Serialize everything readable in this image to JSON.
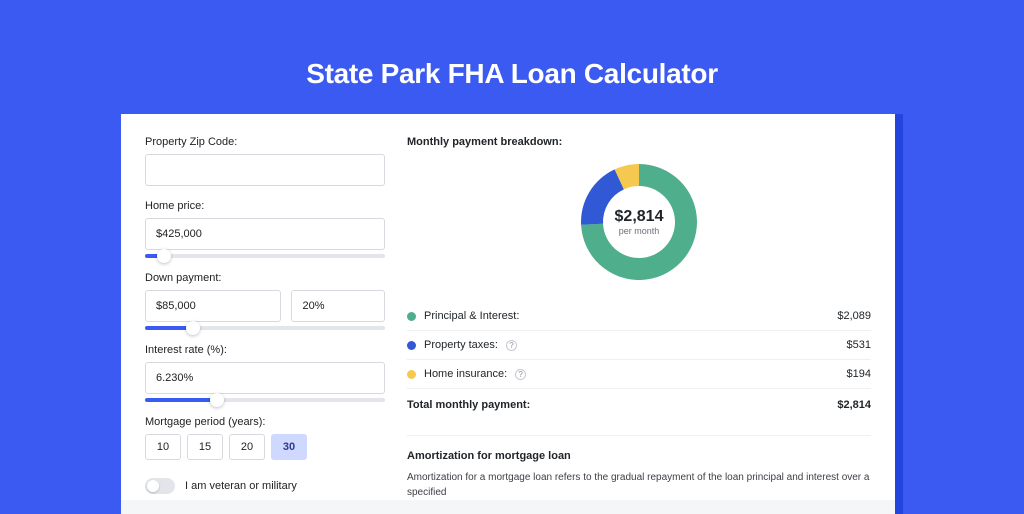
{
  "page": {
    "title": "State Park FHA Loan Calculator",
    "bg_color": "#3b5af1",
    "card_bg": "#ffffff",
    "stage_bg": "#f5f6f8",
    "accent_shadow": "#2444de"
  },
  "form": {
    "zip": {
      "label": "Property Zip Code:",
      "value": ""
    },
    "price": {
      "label": "Home price:",
      "value": "$425,000",
      "slider_pct": 8
    },
    "down": {
      "label": "Down payment:",
      "value": "$85,000",
      "pct_value": "20%",
      "slider_pct": 20
    },
    "rate": {
      "label": "Interest rate (%):",
      "value": "6.230%",
      "slider_pct": 30
    },
    "period": {
      "label": "Mortgage period (years):",
      "options": [
        "10",
        "15",
        "20",
        "30"
      ],
      "active": "30"
    },
    "veteran": {
      "label": "I am veteran or military",
      "on": false
    }
  },
  "breakdown": {
    "title": "Monthly payment breakdown:",
    "total_value": "$2,814",
    "total_sub": "per month",
    "donut": {
      "size": 120,
      "thickness": 22,
      "slices": [
        {
          "label": "Principal & Interest:",
          "value": "$2,089",
          "color": "#4fae8b",
          "amount": 2089
        },
        {
          "label": "Property taxes:",
          "value": "$531",
          "color": "#3159d6",
          "amount": 531,
          "info": true
        },
        {
          "label": "Home insurance:",
          "value": "$194",
          "color": "#f5c850",
          "amount": 194,
          "info": true
        }
      ]
    },
    "total_row": {
      "label": "Total monthly payment:",
      "value": "$2,814"
    }
  },
  "amort": {
    "title": "Amortization for mortgage loan",
    "text": "Amortization for a mortgage loan refers to the gradual repayment of the loan principal and interest over a specified"
  }
}
